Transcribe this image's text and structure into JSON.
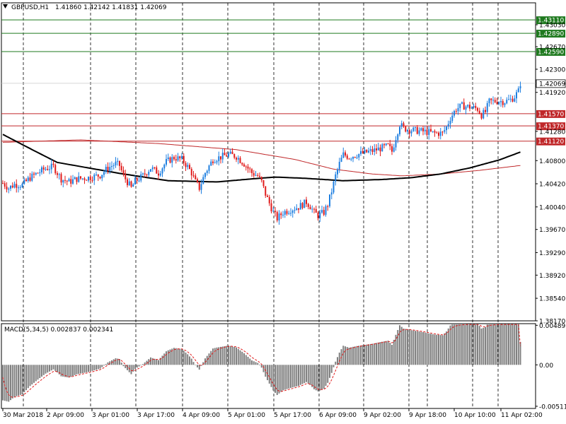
{
  "header": {
    "symbol": "GBPUSD,H1",
    "ohlc": "1.41860 1.42142 1.41831 1.42069",
    "arrow_icon": "triangle-down-icon"
  },
  "macd_label": "MACD(5,34,5) 0.002837 0.002341",
  "colors": {
    "bull": "#1e7fe0",
    "bear": "#e01b1b",
    "ma_fast": "#000000",
    "ma_slow": "#c0282a",
    "support": "#c0282a",
    "resistance": "#1f7a1f",
    "macd_hist": "#808080",
    "macd_signal": "#e01b1b"
  },
  "chart_data": [
    {
      "type": "candlestick",
      "symbol": "GBPUSD",
      "timeframe": "H1",
      "ylim": [
        1.3817,
        1.4339
      ],
      "y_ticks": [
        "1.43110",
        "1.43030",
        "1.42890",
        "1.42670",
        "1.42590",
        "1.42300",
        "1.42069",
        "1.41920",
        "1.41570",
        "1.41370",
        "1.41280",
        "1.41120",
        "1.40800",
        "1.40420",
        "1.40040",
        "1.39670",
        "1.39290",
        "1.38920",
        "1.38540",
        "1.38170"
      ],
      "x_ticks": [
        "30 Mar 2018",
        "2 Apr 09:00",
        "3 Apr 01:00",
        "3 Apr 17:00",
        "4 Apr 09:00",
        "5 Apr 01:00",
        "5 Apr 17:00",
        "6 Apr 09:00",
        "9 Apr 02:00",
        "9 Apr 18:00",
        "10 Apr 10:00",
        "11 Apr 02:00"
      ],
      "current_price": "1.42069",
      "levels": [
        {
          "value": 1.4311,
          "label": "1.43110",
          "kind": "resistance"
        },
        {
          "value": 1.4289,
          "label": "1.42890",
          "kind": "resistance"
        },
        {
          "value": 1.4259,
          "label": "1.42590",
          "kind": "resistance"
        },
        {
          "value": 1.4157,
          "label": "1.41570",
          "kind": "support"
        },
        {
          "value": 1.4137,
          "label": "1.41370",
          "kind": "support"
        },
        {
          "value": 1.4112,
          "label": "1.41120",
          "kind": "support"
        }
      ],
      "ma_fast_waypoints": [
        [
          0,
          1.4123
        ],
        [
          12,
          1.4103
        ],
        [
          28,
          1.4077
        ],
        [
          60,
          1.4059
        ],
        [
          85,
          1.4047
        ],
        [
          110,
          1.4045
        ],
        [
          128,
          1.405
        ],
        [
          140,
          1.4053
        ],
        [
          155,
          1.4051
        ],
        [
          175,
          1.4047
        ],
        [
          195,
          1.4049
        ],
        [
          210,
          1.4052
        ],
        [
          225,
          1.4058
        ],
        [
          240,
          1.4068
        ],
        [
          255,
          1.4081
        ],
        [
          266,
          1.4094
        ]
      ],
      "ma_slow_waypoints": [
        [
          0,
          1.411
        ],
        [
          40,
          1.4114
        ],
        [
          80,
          1.4108
        ],
        [
          120,
          1.4098
        ],
        [
          150,
          1.4082
        ],
        [
          170,
          1.4066
        ],
        [
          190,
          1.4058
        ],
        [
          205,
          1.4055
        ],
        [
          225,
          1.4058
        ],
        [
          245,
          1.4064
        ],
        [
          266,
          1.4072
        ]
      ],
      "price_waypoints": [
        [
          0,
          1.4043
        ],
        [
          3,
          1.4035
        ],
        [
          6,
          1.4041
        ],
        [
          10,
          1.404
        ],
        [
          14,
          1.4052
        ],
        [
          18,
          1.406
        ],
        [
          22,
          1.4067
        ],
        [
          26,
          1.407
        ],
        [
          30,
          1.405
        ],
        [
          34,
          1.4045
        ],
        [
          38,
          1.405
        ],
        [
          44,
          1.4052
        ],
        [
          50,
          1.4056
        ],
        [
          54,
          1.4068
        ],
        [
          58,
          1.4075
        ],
        [
          60,
          1.4072
        ],
        [
          62,
          1.4055
        ],
        [
          64,
          1.4045
        ],
        [
          66,
          1.4035
        ],
        [
          68,
          1.4046
        ],
        [
          72,
          1.4055
        ],
        [
          76,
          1.4068
        ],
        [
          80,
          1.406
        ],
        [
          84,
          1.4078
        ],
        [
          88,
          1.4085
        ],
        [
          92,
          1.4082
        ],
        [
          95,
          1.407
        ],
        [
          97,
          1.406
        ],
        [
          99,
          1.4045
        ],
        [
          101,
          1.4035
        ],
        [
          104,
          1.406
        ],
        [
          108,
          1.4082
        ],
        [
          112,
          1.4086
        ],
        [
          116,
          1.409
        ],
        [
          120,
          1.4087
        ],
        [
          124,
          1.4075
        ],
        [
          128,
          1.406
        ],
        [
          131,
          1.4055
        ],
        [
          133,
          1.4045
        ],
        [
          135,
          1.4025
        ],
        [
          137,
          1.401
        ],
        [
          139,
          1.3995
        ],
        [
          141,
          1.3985
        ],
        [
          144,
          1.3995
        ],
        [
          148,
          1.4
        ],
        [
          152,
          1.4004
        ],
        [
          156,
          1.4012
        ],
        [
          158,
          1.4005
        ],
        [
          160,
          1.3995
        ],
        [
          162,
          1.399
        ],
        [
          165,
          1.3995
        ],
        [
          167,
          1.4008
        ],
        [
          169,
          1.403
        ],
        [
          171,
          1.4055
        ],
        [
          173,
          1.4075
        ],
        [
          175,
          1.409
        ],
        [
          178,
          1.4086
        ],
        [
          182,
          1.409
        ],
        [
          186,
          1.4093
        ],
        [
          190,
          1.4096
        ],
        [
          194,
          1.41
        ],
        [
          198,
          1.4104
        ],
        [
          200,
          1.4095
        ],
        [
          202,
          1.4118
        ],
        [
          204,
          1.414
        ],
        [
          206,
          1.4133
        ],
        [
          210,
          1.413
        ],
        [
          216,
          1.4128
        ],
        [
          222,
          1.4125
        ],
        [
          226,
          1.4125
        ],
        [
          228,
          1.4135
        ],
        [
          230,
          1.415
        ],
        [
          233,
          1.4165
        ],
        [
          236,
          1.417
        ],
        [
          240,
          1.4168
        ],
        [
          244,
          1.4165
        ],
        [
          246,
          1.4155
        ],
        [
          248,
          1.416
        ],
        [
          250,
          1.4177
        ],
        [
          254,
          1.4178
        ],
        [
          258,
          1.4177
        ],
        [
          261,
          1.418
        ],
        [
          263,
          1.4185
        ],
        [
          265,
          1.4194
        ],
        [
          266,
          1.4207
        ]
      ],
      "macd_ylim": [
        -0.0054,
        0.0051
      ],
      "macd_ticks": [
        "0.004893",
        "0.00",
        "-0.005115"
      ],
      "macd_last": 0.002837,
      "macd_signal_last": 0.002341
    }
  ]
}
